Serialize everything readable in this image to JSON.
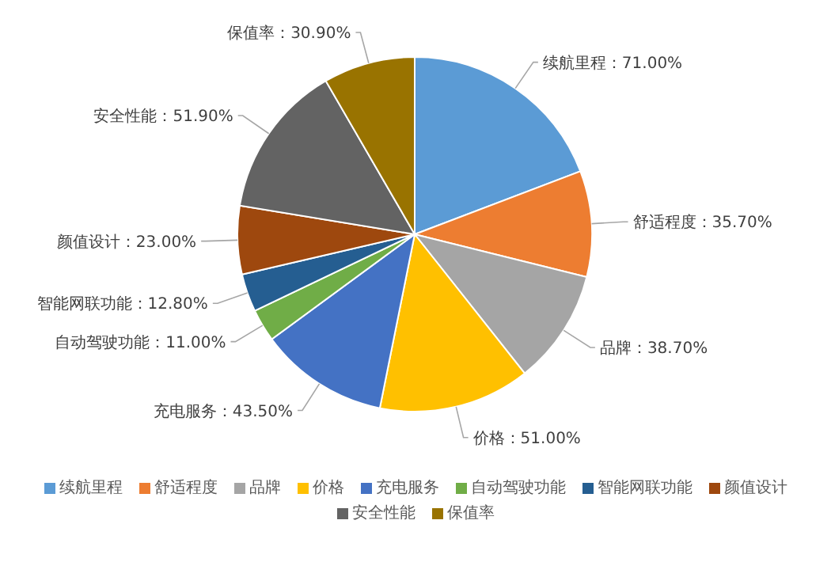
{
  "chart_data": {
    "type": "pie",
    "categories": [
      "续航里程",
      "舒适程度",
      "品牌",
      "价格",
      "充电服务",
      "自动驾驶功能",
      "智能网联功能",
      "颜值设计",
      "安全性能",
      "保值率"
    ],
    "values": [
      71.0,
      35.7,
      38.7,
      51.0,
      43.5,
      11.0,
      12.8,
      23.0,
      51.9,
      30.9
    ],
    "value_labels": [
      "：71.00%",
      "：35.70%",
      "：38.70%",
      "：51.00%",
      "：43.50%",
      "：11.00%",
      "：12.80%",
      "：23.00%",
      "：51.90%",
      "：30.90%"
    ],
    "colors": [
      "#5b9bd5",
      "#ed7d31",
      "#a5a5a5",
      "#ffc000",
      "#4472c4",
      "#70ad47",
      "#255e91",
      "#9e480e",
      "#636363",
      "#997300"
    ],
    "legend": "bottom"
  }
}
